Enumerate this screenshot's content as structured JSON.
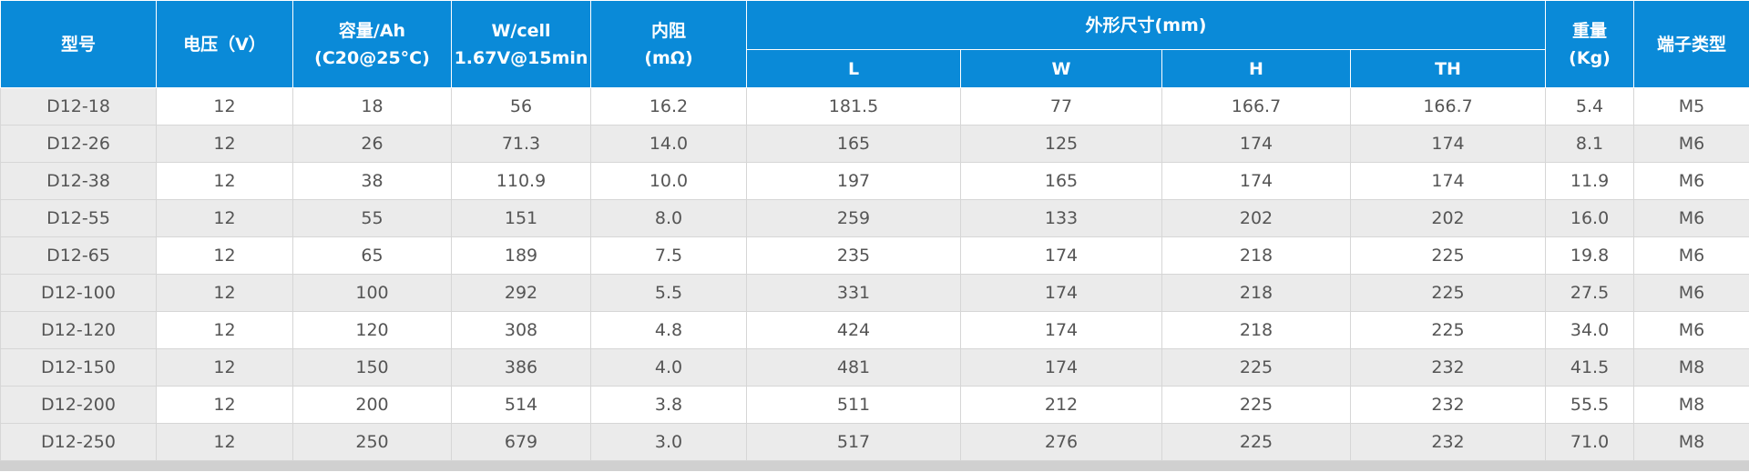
{
  "table": {
    "header": {
      "model": "型号",
      "voltage": "电压（V）",
      "capacity": [
        "容量/Ah",
        "(C20@25°C)"
      ],
      "wcell": [
        "W/cell",
        "1.67V@15min"
      ],
      "resistance": [
        "内阻",
        "(mΩ)"
      ],
      "dimensions": "外形尺寸(mm)",
      "dims": [
        "L",
        "W",
        "H",
        "TH"
      ],
      "weight": [
        "重量",
        "(Kg)"
      ],
      "terminal": "端子类型"
    },
    "rows": [
      [
        "D12-18",
        "12",
        "18",
        "56",
        "16.2",
        "181.5",
        "77",
        "166.7",
        "166.7",
        "5.4",
        "M5"
      ],
      [
        "D12-26",
        "12",
        "26",
        "71.3",
        "14.0",
        "165",
        "125",
        "174",
        "174",
        "8.1",
        "M6"
      ],
      [
        "D12-38",
        "12",
        "38",
        "110.9",
        "10.0",
        "197",
        "165",
        "174",
        "174",
        "11.9",
        "M6"
      ],
      [
        "D12-55",
        "12",
        "55",
        "151",
        "8.0",
        "259",
        "133",
        "202",
        "202",
        "16.0",
        "M6"
      ],
      [
        "D12-65",
        "12",
        "65",
        "189",
        "7.5",
        "235",
        "174",
        "218",
        "225",
        "19.8",
        "M6"
      ],
      [
        "D12-100",
        "12",
        "100",
        "292",
        "5.5",
        "331",
        "174",
        "218",
        "225",
        "27.5",
        "M6"
      ],
      [
        "D12-120",
        "12",
        "120",
        "308",
        "4.8",
        "424",
        "174",
        "218",
        "225",
        "34.0",
        "M6"
      ],
      [
        "D12-150",
        "12",
        "150",
        "386",
        "4.0",
        "481",
        "174",
        "225",
        "232",
        "41.5",
        "M8"
      ],
      [
        "D12-200",
        "12",
        "200",
        "514",
        "3.8",
        "511",
        "212",
        "225",
        "232",
        "55.5",
        "M8"
      ],
      [
        "D12-250",
        "12",
        "250",
        "679",
        "3.0",
        "517",
        "276",
        "225",
        "232",
        "71.0",
        "M8"
      ]
    ]
  }
}
